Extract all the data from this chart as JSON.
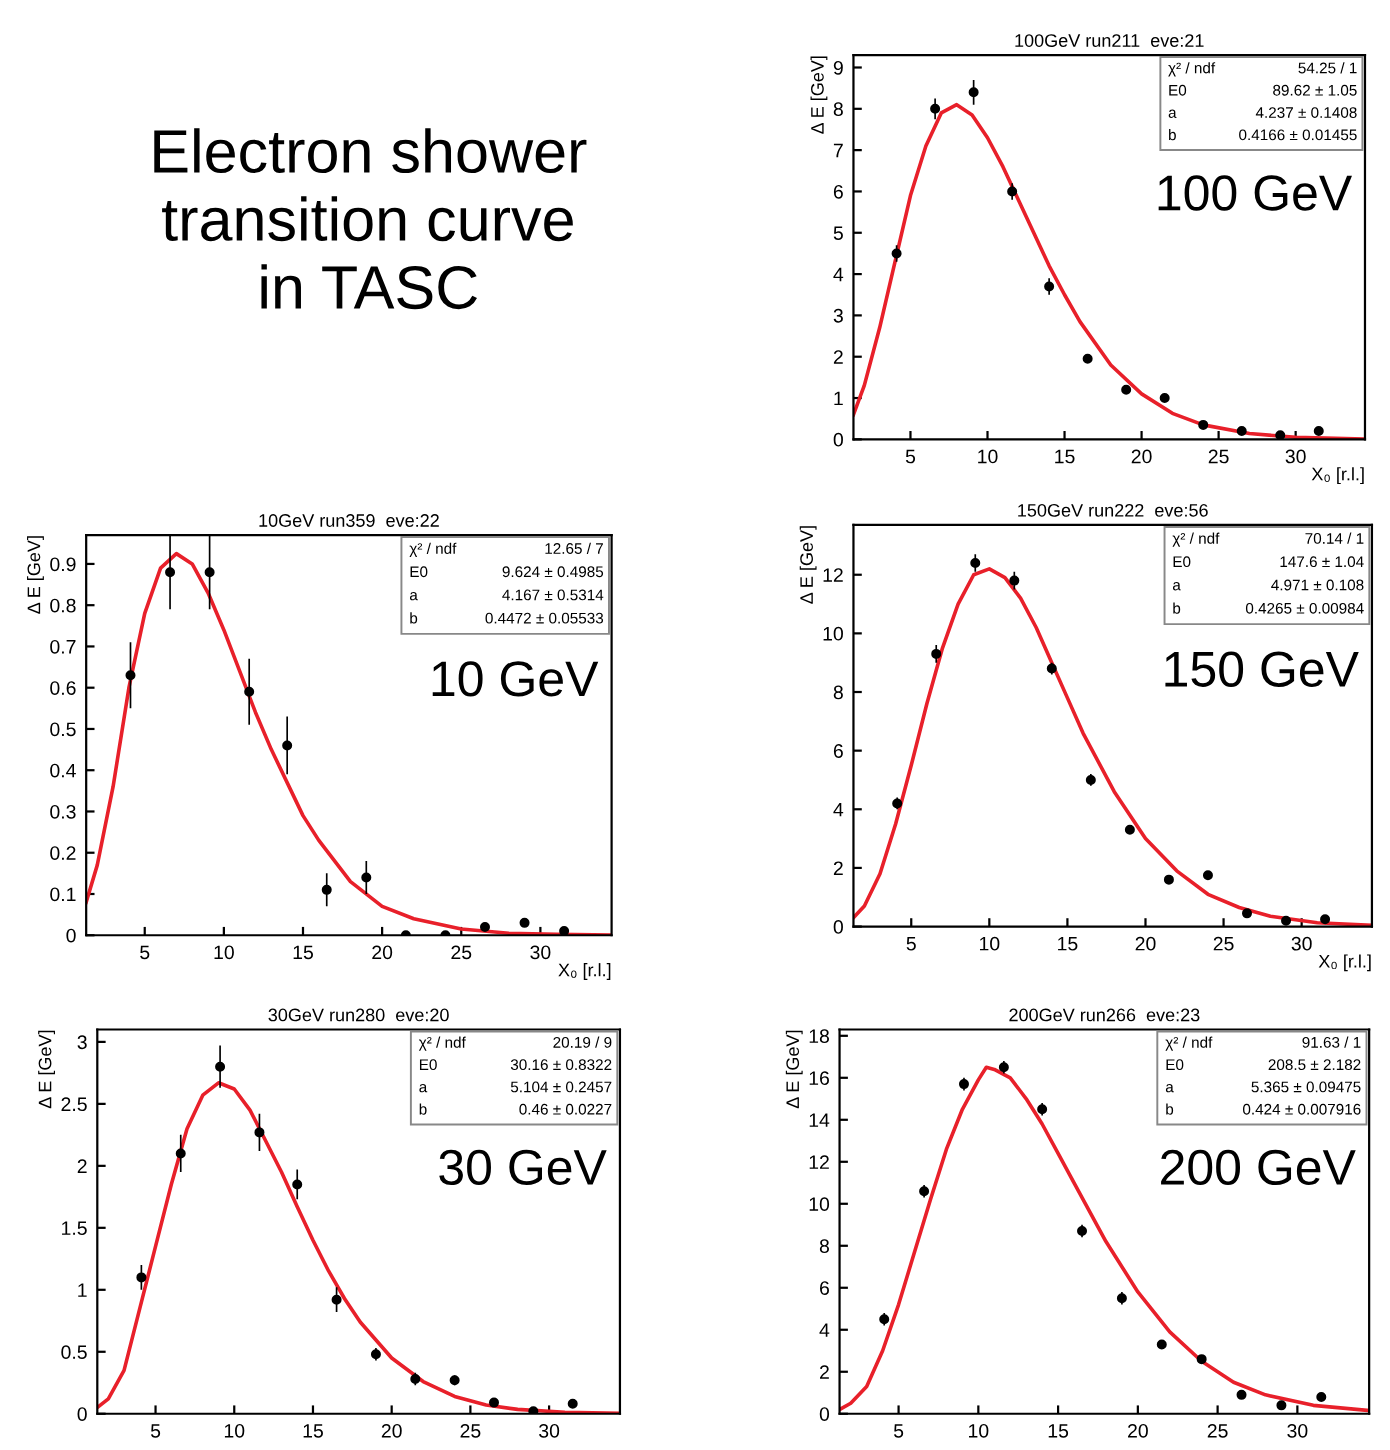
{
  "chart_data": [
    {
      "type": "other",
      "title": "Electron shower\ntransition curve\nin TASC"
    },
    {
      "type": "scatter",
      "title": "100GeV run211  eve:21",
      "xlabel": "X₀ [r.l.]",
      "ylabel": "Δ E [GeV]",
      "xlim": [
        1.3,
        34.5
      ],
      "ylim": [
        0,
        9.3
      ],
      "xticks": [
        5,
        10,
        15,
        20,
        25,
        30
      ],
      "yticks": [
        0,
        1,
        2,
        3,
        4,
        5,
        6,
        7,
        8,
        9
      ],
      "grid": false,
      "annotations": [
        "χ² / ndf",
        "54.25 / 1",
        "E0",
        "89.62 ± 1.05",
        "a",
        "4.237 ± 0.1408",
        "b",
        "0.4166 ± 0.01455",
        "100 GeV"
      ],
      "series": [
        {
          "type": "scatter",
          "marker": "circle",
          "color": "#000000",
          "x": [
            4.1,
            6.6,
            9.1,
            11.6,
            14.0,
            16.5,
            19.0,
            21.5,
            24.0,
            26.5,
            29.0,
            31.5
          ],
          "values": [
            4.5,
            8.0,
            8.4,
            6.0,
            3.7,
            1.95,
            1.2,
            1.0,
            0.35,
            0.2,
            0.1,
            0.2
          ],
          "errors": [
            0.2,
            0.25,
            0.3,
            0.2,
            0.2,
            0.1,
            null,
            null,
            null,
            null,
            null,
            null
          ]
        },
        {
          "type": "line",
          "line_style": "solid",
          "color": "#e8202a",
          "x": [
            1.3,
            2,
            3,
            4,
            5,
            6,
            7,
            8,
            9,
            10,
            11,
            12,
            13,
            14,
            15,
            16,
            18,
            20,
            22,
            24,
            27,
            30,
            34.5
          ],
          "values": [
            0.6,
            1.3,
            2.7,
            4.3,
            5.9,
            7.1,
            7.9,
            8.1,
            7.85,
            7.3,
            6.6,
            5.8,
            5.0,
            4.2,
            3.5,
            2.85,
            1.8,
            1.1,
            0.63,
            0.35,
            0.14,
            0.05,
            0.01
          ]
        }
      ]
    },
    {
      "type": "scatter",
      "title": "10GeV run359  eve:22",
      "xlabel": "X₀ [r.l.]",
      "ylabel": "Δ E [GeV]",
      "xlim": [
        1.3,
        34.5
      ],
      "ylim": [
        0,
        0.97
      ],
      "xticks": [
        5,
        10,
        15,
        20,
        25,
        30
      ],
      "yticks": [
        0,
        0.1,
        0.2,
        0.3,
        0.4,
        0.5,
        0.6,
        0.7,
        0.8,
        0.9
      ],
      "grid": false,
      "annotations": [
        "χ² / ndf",
        "12.65 / 7",
        "E0",
        "9.624 ± 0.4985",
        "a",
        "4.167 ± 0.5314",
        "b",
        "0.4472 ± 0.05533",
        "10 GeV"
      ],
      "series": [
        {
          "type": "scatter",
          "marker": "circle",
          "color": "#000000",
          "x": [
            4.1,
            6.6,
            9.1,
            11.6,
            14.0,
            16.5,
            19.0,
            21.5,
            24.0,
            26.5,
            29.0,
            31.5
          ],
          "values": [
            0.63,
            0.88,
            0.88,
            0.59,
            0.46,
            0.11,
            0.14,
            0.0,
            0.0,
            0.02,
            0.03,
            0.01
          ],
          "errors": [
            0.08,
            0.09,
            0.09,
            0.08,
            0.07,
            0.04,
            0.04,
            null,
            null,
            0.01,
            0.01,
            null
          ]
        },
        {
          "type": "line",
          "line_style": "solid",
          "color": "#e8202a",
          "x": [
            1.3,
            2,
            3,
            4,
            5,
            6,
            7,
            8,
            9,
            10,
            11,
            12,
            13,
            14,
            15,
            16,
            18,
            20,
            22,
            25,
            28,
            31,
            34.5
          ],
          "values": [
            0.08,
            0.17,
            0.36,
            0.6,
            0.78,
            0.89,
            0.925,
            0.9,
            0.83,
            0.74,
            0.64,
            0.54,
            0.45,
            0.37,
            0.29,
            0.23,
            0.13,
            0.07,
            0.04,
            0.015,
            0.005,
            0.002,
            0.0005
          ]
        }
      ]
    },
    {
      "type": "scatter",
      "title": "150GeV run222  eve:56",
      "xlabel": "X₀ [r.l.]",
      "ylabel": "Δ E [GeV]",
      "xlim": [
        1.3,
        34.5
      ],
      "ylim": [
        0,
        13.7
      ],
      "xticks": [
        5,
        10,
        15,
        20,
        25,
        30
      ],
      "yticks": [
        0,
        2,
        4,
        6,
        8,
        10,
        12
      ],
      "grid": false,
      "annotations": [
        "χ² / ndf",
        "70.14 / 1",
        "E0",
        "147.6 ± 1.04",
        "a",
        "4.971 ± 0.108",
        "b",
        "0.4265 ± 0.00984",
        "150 GeV"
      ],
      "series": [
        {
          "type": "scatter",
          "marker": "circle",
          "color": "#000000",
          "x": [
            4.1,
            6.6,
            9.1,
            11.6,
            14.0,
            16.5,
            19.0,
            21.5,
            24.0,
            26.5,
            29.0,
            31.5
          ],
          "values": [
            4.2,
            9.3,
            12.4,
            11.8,
            8.8,
            5.0,
            3.3,
            1.6,
            1.75,
            0.45,
            0.2,
            0.25
          ],
          "errors": [
            0.2,
            0.3,
            0.3,
            0.3,
            0.2,
            0.2,
            null,
            null,
            null,
            null,
            null,
            null
          ]
        },
        {
          "type": "line",
          "line_style": "solid",
          "color": "#e8202a",
          "x": [
            1.3,
            2,
            3,
            4,
            5,
            6,
            7,
            8,
            9,
            10,
            11,
            12,
            13,
            14,
            15,
            16,
            18,
            20,
            22,
            24,
            26,
            28,
            31,
            34.5
          ],
          "values": [
            0.3,
            0.7,
            1.8,
            3.5,
            5.5,
            7.6,
            9.5,
            11.0,
            12.0,
            12.2,
            11.9,
            11.2,
            10.2,
            9.0,
            7.8,
            6.6,
            4.6,
            3.0,
            1.9,
            1.1,
            0.65,
            0.35,
            0.13,
            0.04
          ]
        }
      ]
    },
    {
      "type": "scatter",
      "title": "30GeV run280  eve:20",
      "ylabel": "Δ E [GeV]",
      "xlim": [
        1.3,
        34.5
      ],
      "ylim": [
        0,
        3.1
      ],
      "xticks": [
        5,
        10,
        15,
        20,
        25,
        30
      ],
      "yticks": [
        0,
        0.5,
        1,
        1.5,
        2,
        2.5,
        3
      ],
      "grid": false,
      "annotations": [
        "χ² / ndf",
        "20.19 / 9",
        "E0",
        "30.16 ± 0.8322",
        "a",
        "5.104 ± 0.2457",
        "b",
        "0.46 ± 0.0227",
        "30 GeV"
      ],
      "series": [
        {
          "type": "scatter",
          "marker": "circle",
          "color": "#000000",
          "x": [
            4.1,
            6.6,
            9.1,
            11.6,
            14.0,
            16.5,
            19.0,
            21.5,
            24.0,
            26.5,
            29.0,
            31.5
          ],
          "values": [
            1.1,
            2.1,
            2.8,
            2.27,
            1.85,
            0.92,
            0.48,
            0.28,
            0.27,
            0.09,
            0.02,
            0.08
          ],
          "errors": [
            0.1,
            0.15,
            0.17,
            0.15,
            0.12,
            0.1,
            0.05,
            0.05,
            0.04,
            null,
            null,
            null
          ]
        },
        {
          "type": "line",
          "line_style": "solid",
          "color": "#e8202a",
          "x": [
            1.3,
            2,
            3,
            4,
            5,
            6,
            7,
            8,
            9,
            10,
            11,
            12,
            13,
            14,
            15,
            16,
            17,
            18,
            20,
            22,
            24,
            26,
            28,
            31,
            34.5
          ],
          "values": [
            0.05,
            0.12,
            0.35,
            0.85,
            1.35,
            1.85,
            2.3,
            2.57,
            2.67,
            2.62,
            2.45,
            2.2,
            1.95,
            1.67,
            1.4,
            1.15,
            0.93,
            0.74,
            0.45,
            0.26,
            0.14,
            0.07,
            0.035,
            0.012,
            0.004
          ]
        }
      ]
    },
    {
      "type": "scatter",
      "title": "200GeV run266  eve:23",
      "ylabel": "Δ E [GeV]",
      "xlim": [
        1.3,
        34.5
      ],
      "ylim": [
        0,
        18.3
      ],
      "xticks": [
        5,
        10,
        15,
        20,
        25,
        30
      ],
      "yticks": [
        0,
        2,
        4,
        6,
        8,
        10,
        12,
        14,
        16,
        18
      ],
      "grid": false,
      "annotations": [
        "χ² / ndf",
        "91.63 / 1",
        "E0",
        "208.5 ± 2.182",
        "a",
        "5.365 ± 0.09475",
        "b",
        "0.424 ± 0.007916",
        "200 GeV"
      ],
      "series": [
        {
          "type": "scatter",
          "marker": "circle",
          "color": "#000000",
          "x": [
            4.1,
            6.6,
            9.1,
            11.6,
            14.0,
            16.5,
            19.0,
            21.5,
            24.0,
            26.5,
            29.0,
            31.5
          ],
          "values": [
            4.5,
            10.6,
            15.7,
            16.5,
            14.5,
            8.7,
            5.5,
            3.3,
            2.6,
            0.9,
            0.4,
            0.8
          ],
          "errors": [
            0.3,
            0.3,
            0.3,
            0.3,
            0.3,
            0.3,
            0.3,
            null,
            null,
            null,
            null,
            null
          ]
        },
        {
          "type": "line",
          "line_style": "solid",
          "color": "#e8202a",
          "x": [
            1.3,
            2,
            3,
            4,
            5,
            6,
            7,
            8,
            9,
            10,
            10.5,
            11,
            12,
            13,
            14,
            15,
            16,
            18,
            20,
            22,
            24,
            26,
            28,
            31,
            34.5
          ],
          "values": [
            0.2,
            0.5,
            1.3,
            3.0,
            5.2,
            7.7,
            10.2,
            12.6,
            14.5,
            15.9,
            16.5,
            16.4,
            16.0,
            15.0,
            13.8,
            12.4,
            11.0,
            8.2,
            5.8,
            3.9,
            2.5,
            1.5,
            0.9,
            0.4,
            0.15
          ]
        }
      ]
    }
  ]
}
